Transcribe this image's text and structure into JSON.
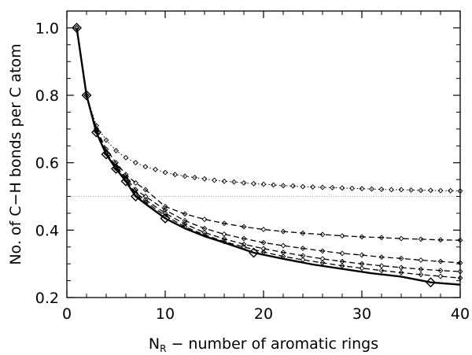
{
  "chart_data": {
    "type": "line",
    "xlabel_main": "N",
    "xlabel_sub": "R",
    "xlabel_rest": " − number of aromatic rings",
    "ylabel": "No. of C−H bonds per C atom",
    "xlim": [
      0,
      40
    ],
    "ylim": [
      0.2,
      1.05
    ],
    "xticks": [
      0,
      10,
      20,
      30,
      40
    ],
    "yticks": [
      0.2,
      0.4,
      0.6,
      0.8,
      1.0
    ],
    "ytick_labels": [
      "0.2",
      "0.4",
      "0.6",
      "0.8",
      "1.0"
    ],
    "reference_line": {
      "y": 0.5,
      "style": "dotted"
    },
    "series": [
      {
        "style": "solid-thick",
        "marker": "large-diamond",
        "x": [
          1,
          2,
          3,
          4,
          5,
          6,
          7,
          8,
          10,
          12,
          14,
          16,
          19,
          22,
          25,
          28,
          31,
          34,
          37,
          40
        ],
        "y": [
          1.0,
          0.8,
          0.69,
          0.625,
          0.582,
          0.545,
          0.5,
          0.478,
          0.435,
          0.405,
          0.382,
          0.363,
          0.333,
          0.315,
          0.298,
          0.285,
          0.272,
          0.262,
          0.245,
          0.238
        ],
        "markers_x": [
          1,
          2,
          3,
          4,
          5,
          6,
          7,
          10,
          19,
          37
        ],
        "markers_y": [
          1.0,
          0.8,
          0.69,
          0.625,
          0.582,
          0.545,
          0.5,
          0.435,
          0.333,
          0.245
        ]
      },
      {
        "style": "dotted",
        "marker": "small-diamond",
        "x": [
          1,
          2,
          3,
          4,
          5,
          6,
          7,
          8,
          9,
          10,
          11,
          12,
          13,
          14,
          15,
          16,
          17,
          18,
          19,
          20,
          21,
          22,
          23,
          24,
          25,
          26,
          27,
          28,
          29,
          30,
          31,
          32,
          33,
          34,
          35,
          36,
          37,
          38,
          39,
          40
        ],
        "y": [
          1.0,
          0.8,
          0.71,
          0.667,
          0.636,
          0.615,
          0.6,
          0.588,
          0.58,
          0.571,
          0.565,
          0.56,
          0.556,
          0.552,
          0.548,
          0.545,
          0.543,
          0.54,
          0.538,
          0.536,
          0.534,
          0.532,
          0.531,
          0.529,
          0.528,
          0.527,
          0.526,
          0.525,
          0.524,
          0.523,
          0.522,
          0.521,
          0.52,
          0.52,
          0.519,
          0.518,
          0.518,
          0.517,
          0.517,
          0.516
        ]
      },
      {
        "style": "dashed",
        "marker": "small-diamond",
        "x": [
          1,
          2,
          3,
          4,
          5,
          6,
          7,
          8,
          10,
          12,
          14,
          16,
          18,
          20,
          22,
          24,
          26,
          28,
          30,
          32,
          34,
          36,
          38,
          40
        ],
        "y": [
          1.0,
          0.8,
          0.7,
          0.64,
          0.6,
          0.565,
          0.54,
          0.52,
          0.47,
          0.448,
          0.432,
          0.42,
          0.41,
          0.402,
          0.396,
          0.391,
          0.387,
          0.383,
          0.38,
          0.378,
          0.375,
          0.373,
          0.371,
          0.37
        ]
      },
      {
        "style": "dashed",
        "marker": "small-diamond",
        "x": [
          1,
          2,
          3,
          4,
          5,
          6,
          7,
          8,
          10,
          12,
          14,
          16,
          18,
          20,
          22,
          24,
          26,
          28,
          30,
          32,
          34,
          36,
          38,
          40
        ],
        "y": [
          1.0,
          0.8,
          0.7,
          0.63,
          0.59,
          0.555,
          0.52,
          0.5,
          0.46,
          0.428,
          0.405,
          0.388,
          0.375,
          0.363,
          0.354,
          0.346,
          0.338,
          0.331,
          0.326,
          0.32,
          0.316,
          0.311,
          0.307,
          0.303
        ]
      },
      {
        "style": "dashed",
        "marker": "small-diamond",
        "x": [
          1,
          2,
          3,
          4,
          5,
          6,
          7,
          8,
          10,
          12,
          14,
          16,
          18,
          20,
          22,
          24,
          26,
          28,
          30,
          32,
          34,
          36,
          38,
          40
        ],
        "y": [
          1.0,
          0.8,
          0.695,
          0.63,
          0.585,
          0.55,
          0.51,
          0.49,
          0.45,
          0.418,
          0.393,
          0.374,
          0.358,
          0.345,
          0.334,
          0.324,
          0.315,
          0.307,
          0.3,
          0.294,
          0.289,
          0.284,
          0.28,
          0.277
        ]
      },
      {
        "style": "dashed",
        "marker": "small-diamond",
        "x": [
          1,
          2,
          3,
          4,
          5,
          6,
          7,
          8,
          10,
          12,
          14,
          16,
          18,
          20,
          22,
          24,
          26,
          28,
          30,
          32,
          34,
          36,
          38,
          40
        ],
        "y": [
          1.0,
          0.8,
          0.692,
          0.627,
          0.583,
          0.548,
          0.505,
          0.484,
          0.443,
          0.41,
          0.386,
          0.366,
          0.35,
          0.335,
          0.322,
          0.312,
          0.303,
          0.294,
          0.287,
          0.28,
          0.274,
          0.268,
          0.263,
          0.258
        ]
      }
    ]
  }
}
